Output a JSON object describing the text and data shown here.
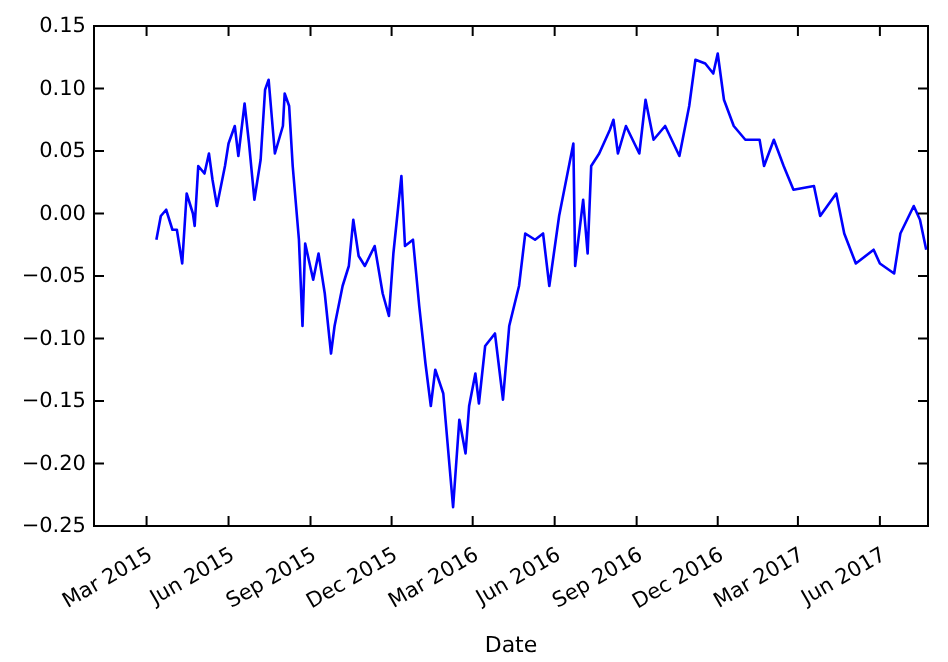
{
  "chart_data": {
    "type": "line",
    "xlabel": "Date",
    "xlim": [
      "2015-01-01",
      "2017-07-25"
    ],
    "ylim": [
      -0.25,
      0.15
    ],
    "xticks": [
      {
        "value": "2015-03-01",
        "label": "Mar 2015"
      },
      {
        "value": "2015-06-01",
        "label": "Jun 2015"
      },
      {
        "value": "2015-09-01",
        "label": "Sep 2015"
      },
      {
        "value": "2015-12-01",
        "label": "Dec 2015"
      },
      {
        "value": "2016-03-01",
        "label": "Mar 2016"
      },
      {
        "value": "2016-06-01",
        "label": "Jun 2016"
      },
      {
        "value": "2016-09-01",
        "label": "Sep 2016"
      },
      {
        "value": "2016-12-01",
        "label": "Dec 2016"
      },
      {
        "value": "2017-03-01",
        "label": "Mar 2017"
      },
      {
        "value": "2017-06-01",
        "label": "Jun 2017"
      }
    ],
    "yticks": [
      {
        "value": -0.25,
        "label": "−0.25"
      },
      {
        "value": -0.2,
        "label": "−0.20"
      },
      {
        "value": -0.15,
        "label": "−0.15"
      },
      {
        "value": -0.1,
        "label": "−0.10"
      },
      {
        "value": -0.05,
        "label": "−0.05"
      },
      {
        "value": 0,
        "label": "0.00"
      },
      {
        "value": 0.05,
        "label": "0.05"
      },
      {
        "value": 0.1,
        "label": "0.10"
      },
      {
        "value": 0.15,
        "label": "0.15"
      }
    ],
    "grid": false,
    "x": [
      "2015-03-12",
      "2015-03-17",
      "2015-03-23",
      "2015-03-30",
      "2015-04-04",
      "2015-04-10",
      "2015-04-15",
      "2015-04-22",
      "2015-04-24",
      "2015-04-28",
      "2015-05-05",
      "2015-05-10",
      "2015-05-14",
      "2015-05-19",
      "2015-05-28",
      "2015-06-01",
      "2015-06-08",
      "2015-06-12",
      "2015-06-19",
      "2015-06-24",
      "2015-06-30",
      "2015-07-07",
      "2015-07-12",
      "2015-07-16",
      "2015-07-23",
      "2015-08-01",
      "2015-08-03",
      "2015-08-08",
      "2015-08-12",
      "2015-08-19",
      "2015-08-23",
      "2015-08-26",
      "2015-09-04",
      "2015-09-10",
      "2015-09-17",
      "2015-09-24",
      "2015-09-28",
      "2015-10-07",
      "2015-10-14",
      "2015-10-19",
      "2015-10-25",
      "2015-11-01",
      "2015-11-12",
      "2015-11-21",
      "2015-11-28",
      "2015-12-03",
      "2015-12-12",
      "2015-12-16",
      "2015-12-25",
      "2016-01-01",
      "2016-01-08",
      "2016-01-14",
      "2016-01-19",
      "2016-01-28",
      "2016-02-04",
      "2016-02-08",
      "2016-02-15",
      "2016-02-22",
      "2016-02-26",
      "2016-03-04",
      "2016-03-08",
      "2016-03-15",
      "2016-03-26",
      "2016-04-04",
      "2016-04-11",
      "2016-04-22",
      "2016-04-29",
      "2016-05-10",
      "2016-05-19",
      "2016-05-26",
      "2016-06-06",
      "2016-06-22",
      "2016-06-24",
      "2016-07-03",
      "2016-07-08",
      "2016-07-12",
      "2016-07-21",
      "2016-08-02",
      "2016-08-06",
      "2016-08-11",
      "2016-08-20",
      "2016-09-04",
      "2016-09-11",
      "2016-09-20",
      "2016-10-03",
      "2016-10-19",
      "2016-10-30",
      "2016-11-06",
      "2016-11-17",
      "2016-11-26",
      "2016-12-01",
      "2016-12-08",
      "2016-12-19",
      "2017-01-01",
      "2017-01-17",
      "2017-01-22",
      "2017-02-02",
      "2017-02-13",
      "2017-02-24",
      "2017-03-19",
      "2017-03-26",
      "2017-04-13",
      "2017-04-22",
      "2017-05-05",
      "2017-05-25",
      "2017-06-01",
      "2017-06-17",
      "2017-06-24",
      "2017-07-09",
      "2017-07-16",
      "2017-07-23"
    ],
    "series": [
      {
        "color": "#0000ff",
        "values": [
          -0.021,
          -0.002,
          0.003,
          -0.013,
          -0.013,
          -0.04,
          0.016,
          0,
          -0.01,
          0.038,
          0.032,
          0.048,
          0.027,
          0.006,
          0.038,
          0.056,
          0.07,
          0.046,
          0.088,
          0.056,
          0.011,
          0.043,
          0.099,
          0.107,
          0.048,
          0.07,
          0.096,
          0.086,
          0.038,
          -0.021,
          -0.09,
          -0.024,
          -0.053,
          -0.032,
          -0.064,
          -0.112,
          -0.09,
          -0.058,
          -0.042,
          -0.005,
          -0.034,
          -0.042,
          -0.026,
          -0.064,
          -0.082,
          -0.032,
          0.03,
          -0.026,
          -0.021,
          -0.074,
          -0.12,
          -0.154,
          -0.125,
          -0.144,
          -0.202,
          -0.235,
          -0.165,
          -0.192,
          -0.154,
          -0.128,
          -0.152,
          -0.106,
          -0.096,
          -0.149,
          -0.09,
          -0.058,
          -0.016,
          -0.021,
          -0.016,
          -0.058,
          -0.002,
          0.056,
          -0.042,
          0.011,
          -0.032,
          0.038,
          0.048,
          0.067,
          0.075,
          0.048,
          0.07,
          0.048,
          0.091,
          0.059,
          0.07,
          0.046,
          0.086,
          0.123,
          0.12,
          0.112,
          0.128,
          0.091,
          0.07,
          0.059,
          0.059,
          0.038,
          0.059,
          0.038,
          0.019,
          0.022,
          -0.002,
          0.016,
          -0.016,
          -0.04,
          -0.029,
          -0.04,
          -0.048,
          -0.016,
          0.006,
          -0.005,
          -0.029
        ]
      }
    ]
  }
}
